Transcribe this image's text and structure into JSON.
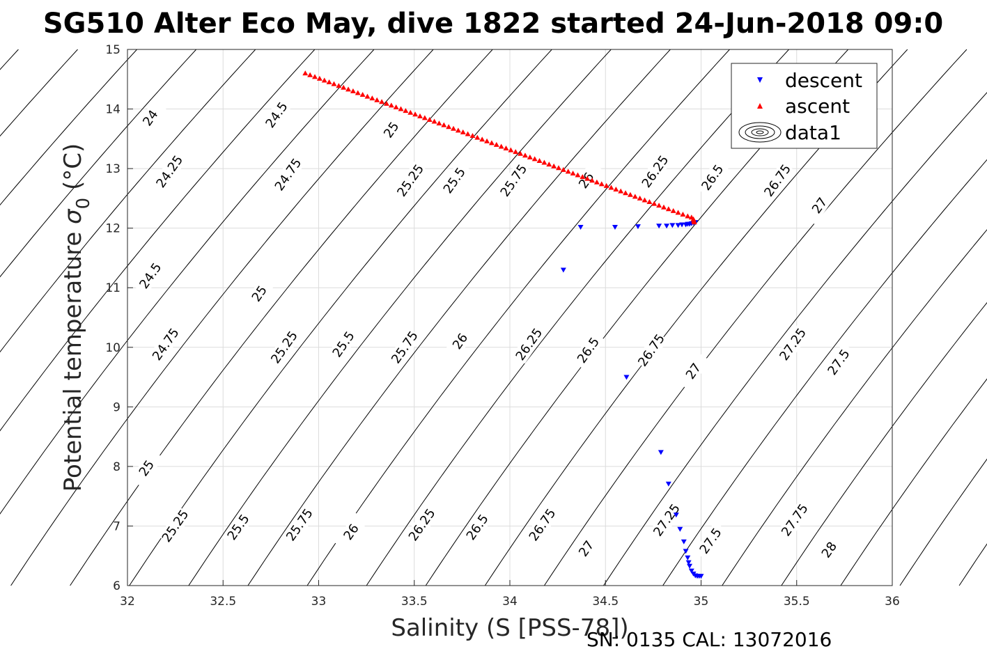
{
  "chart_data": {
    "type": "scatter",
    "title": "SG510 Alter Eco May, dive 1822 started 24-Jun-2018 09:0",
    "xlabel": "Salinity (S [PSS-78])",
    "ylabel_main": "Potential temperature ",
    "ylabel_sigma": "σ",
    "ylabel_sub": "0",
    "ylabel_unit": " (°C)",
    "footer": "SN: 0135  CAL: 13072016",
    "xlim": [
      32,
      36
    ],
    "ylim": [
      6,
      15
    ],
    "x_ticks": [
      "32",
      "32.5",
      "33",
      "33.5",
      "34",
      "34.5",
      "35",
      "35.5",
      "36"
    ],
    "y_ticks": [
      "6",
      "7",
      "8",
      "9",
      "10",
      "11",
      "12",
      "13",
      "14",
      "15"
    ],
    "grid": true,
    "legend_position": "top-right",
    "legend": [
      "descent",
      "ascent",
      "data1"
    ],
    "series": [
      {
        "name": "descent",
        "marker": "triangle-down",
        "color": "#0000ff",
        "x": [
          34.28,
          34.37,
          34.55,
          34.67,
          34.78,
          34.82,
          34.85,
          34.88,
          34.9,
          34.92,
          34.93,
          34.94,
          34.95,
          34.96,
          34.97,
          34.61,
          34.79,
          34.83,
          34.87,
          34.89,
          34.91,
          34.92,
          34.93,
          34.935,
          34.94,
          34.95,
          34.96,
          34.97,
          34.98,
          34.99,
          35.0
        ],
        "y": [
          11.3,
          12.02,
          12.02,
          12.03,
          12.04,
          12.04,
          12.05,
          12.05,
          12.06,
          12.06,
          12.07,
          12.07,
          12.08,
          12.09,
          12.1,
          9.5,
          8.24,
          7.71,
          7.19,
          6.95,
          6.74,
          6.58,
          6.47,
          6.39,
          6.33,
          6.25,
          6.2,
          6.17,
          6.16,
          6.16,
          6.16
        ]
      },
      {
        "name": "ascent",
        "marker": "triangle-up",
        "color": "#ff0000",
        "x": [
          32.93,
          32.955,
          32.98,
          33.005,
          33.03,
          33.055,
          33.08,
          33.105,
          33.13,
          33.155,
          33.18,
          33.205,
          33.23,
          33.255,
          33.28,
          33.305,
          33.33,
          33.355,
          33.38,
          33.405,
          33.43,
          33.455,
          33.48,
          33.505,
          33.53,
          33.555,
          33.58,
          33.605,
          33.63,
          33.655,
          33.68,
          33.705,
          33.73,
          33.755,
          33.78,
          33.805,
          33.83,
          33.855,
          33.88,
          33.905,
          33.93,
          33.955,
          33.98,
          34.005,
          34.03,
          34.055,
          34.08,
          34.105,
          34.13,
          34.155,
          34.18,
          34.205,
          34.23,
          34.255,
          34.28,
          34.305,
          34.33,
          34.355,
          34.38,
          34.405,
          34.43,
          34.455,
          34.48,
          34.505,
          34.53,
          34.555,
          34.58,
          34.605,
          34.63,
          34.655,
          34.68,
          34.705,
          34.73,
          34.755,
          34.78,
          34.805,
          34.83,
          34.855,
          34.88,
          34.905,
          34.93,
          34.95,
          34.96,
          34.962,
          34.965
        ],
        "y": [
          14.6,
          14.57,
          14.54,
          14.51,
          14.48,
          14.45,
          14.42,
          14.39,
          14.36,
          14.33,
          14.3,
          14.27,
          14.24,
          14.21,
          14.18,
          14.15,
          14.12,
          14.09,
          14.06,
          14.03,
          14.0,
          13.97,
          13.94,
          13.91,
          13.88,
          13.85,
          13.82,
          13.79,
          13.76,
          13.73,
          13.7,
          13.67,
          13.64,
          13.61,
          13.58,
          13.55,
          13.52,
          13.49,
          13.46,
          13.43,
          13.4,
          13.37,
          13.34,
          13.31,
          13.28,
          13.25,
          13.22,
          13.19,
          13.16,
          13.13,
          13.1,
          13.07,
          13.04,
          13.01,
          12.98,
          12.95,
          12.92,
          12.89,
          12.86,
          12.83,
          12.8,
          12.77,
          12.74,
          12.71,
          12.68,
          12.65,
          12.62,
          12.59,
          12.56,
          12.53,
          12.5,
          12.47,
          12.44,
          12.41,
          12.38,
          12.35,
          12.32,
          12.29,
          12.26,
          12.23,
          12.2,
          12.18,
          12.15,
          12.12,
          12.1
        ]
      }
    ],
    "contour_labels": [
      {
        "text": "24",
        "x": 32.12,
        "y": 13.85
      },
      {
        "text": "24.5",
        "x": 32.78,
        "y": 13.9
      },
      {
        "text": "25",
        "x": 33.38,
        "y": 13.65
      },
      {
        "text": "24.25",
        "x": 32.22,
        "y": 12.95
      },
      {
        "text": "24.75",
        "x": 32.84,
        "y": 12.9
      },
      {
        "text": "25.25",
        "x": 33.48,
        "y": 12.8
      },
      {
        "text": "25.5",
        "x": 33.71,
        "y": 12.8
      },
      {
        "text": "25.75",
        "x": 34.02,
        "y": 12.8
      },
      {
        "text": "26",
        "x": 34.4,
        "y": 12.8
      },
      {
        "text": "26.25",
        "x": 34.76,
        "y": 12.95
      },
      {
        "text": "26.5",
        "x": 35.06,
        "y": 12.85
      },
      {
        "text": "26.75",
        "x": 35.4,
        "y": 12.8
      },
      {
        "text": "27",
        "x": 35.62,
        "y": 12.38
      },
      {
        "text": "24.5",
        "x": 32.12,
        "y": 11.2
      },
      {
        "text": "25",
        "x": 32.69,
        "y": 10.9
      },
      {
        "text": "24.75",
        "x": 32.2,
        "y": 10.05
      },
      {
        "text": "25.25",
        "x": 32.82,
        "y": 10.0
      },
      {
        "text": "25.5",
        "x": 33.13,
        "y": 10.05
      },
      {
        "text": "25.75",
        "x": 33.45,
        "y": 10.0
      },
      {
        "text": "26",
        "x": 33.74,
        "y": 10.1
      },
      {
        "text": "26.25",
        "x": 34.1,
        "y": 10.05
      },
      {
        "text": "26.5",
        "x": 34.41,
        "y": 9.95
      },
      {
        "text": "26.75",
        "x": 34.74,
        "y": 9.95
      },
      {
        "text": "27",
        "x": 34.96,
        "y": 9.6
      },
      {
        "text": "27.25",
        "x": 35.48,
        "y": 10.05
      },
      {
        "text": "27.5",
        "x": 35.72,
        "y": 9.75
      },
      {
        "text": "25",
        "x": 32.1,
        "y": 7.97
      },
      {
        "text": "25.25",
        "x": 32.25,
        "y": 7.0
      },
      {
        "text": "25.5",
        "x": 32.58,
        "y": 6.98
      },
      {
        "text": "25.75",
        "x": 32.9,
        "y": 7.02
      },
      {
        "text": "26",
        "x": 33.17,
        "y": 6.9
      },
      {
        "text": "26.25",
        "x": 33.54,
        "y": 7.02
      },
      {
        "text": "26.5",
        "x": 33.83,
        "y": 6.98
      },
      {
        "text": "26.75",
        "x": 34.17,
        "y": 7.02
      },
      {
        "text": "27",
        "x": 34.4,
        "y": 6.62
      },
      {
        "text": "27.25",
        "x": 34.82,
        "y": 7.1
      },
      {
        "text": "27.5",
        "x": 35.05,
        "y": 6.75
      },
      {
        "text": "27.75",
        "x": 35.49,
        "y": 7.1
      },
      {
        "text": "28",
        "x": 35.67,
        "y": 6.6
      }
    ]
  },
  "colors": {
    "descent": "#0000ff",
    "ascent": "#ff0000",
    "contour": "#000000",
    "grid": "#dcdcdc",
    "axis": "#262626"
  }
}
